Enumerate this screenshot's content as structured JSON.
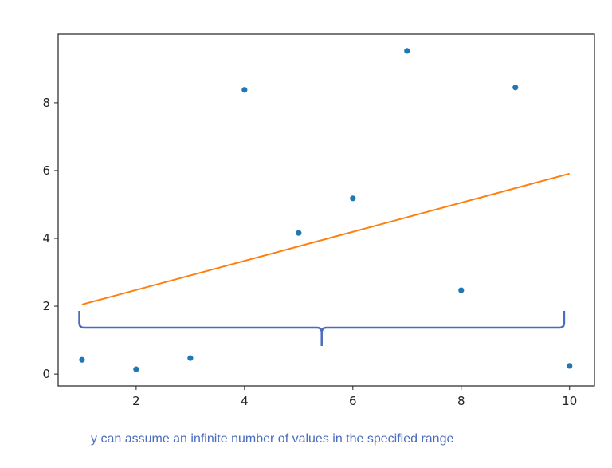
{
  "chart_data": {
    "type": "scatter",
    "title": "",
    "xlabel": "",
    "ylabel": "",
    "xlim": [
      0.56,
      10.46
    ],
    "ylim": [
      -0.35,
      10.02
    ],
    "grid": false,
    "x_ticks": [
      2,
      4,
      6,
      8,
      10
    ],
    "y_ticks": [
      0,
      2,
      4,
      6,
      8
    ],
    "series": [
      {
        "kind": "scatter",
        "color": "#1f77b4",
        "x": [
          1,
          2,
          3,
          4,
          5,
          6,
          7,
          8,
          9,
          10
        ],
        "y": [
          0.42,
          0.14,
          0.47,
          8.38,
          4.16,
          5.18,
          9.53,
          2.47,
          8.45,
          0.24
        ]
      },
      {
        "kind": "line",
        "color": "#ff7f0e",
        "x": [
          1,
          10
        ],
        "y": [
          2.05,
          5.91
        ]
      }
    ],
    "annotation": {
      "shape": "curly-brace",
      "color": "#4a6bbf",
      "x_range": [
        0.95,
        9.9
      ],
      "text": "y can assume an infinite number of values in the specified range"
    }
  }
}
